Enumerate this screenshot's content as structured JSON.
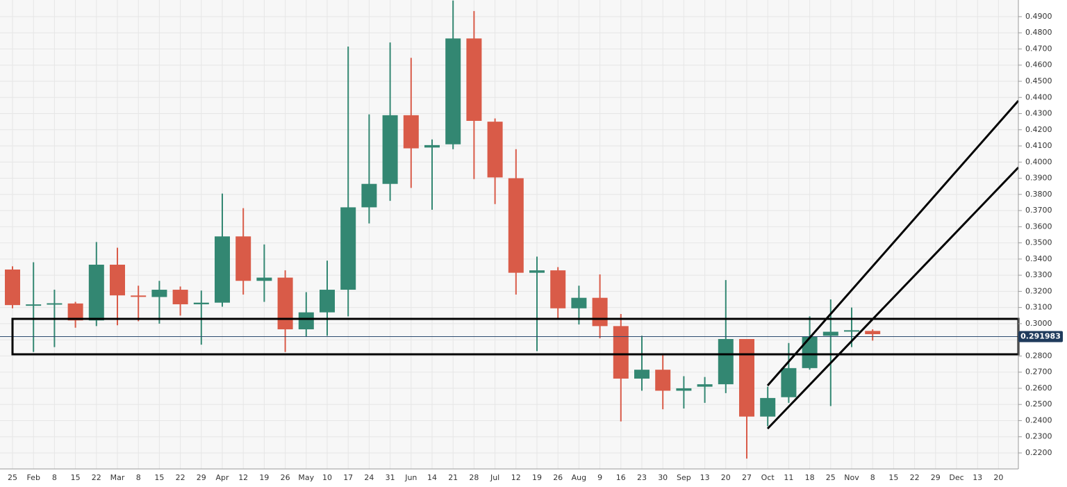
{
  "chart_data": {
    "type": "candlestick",
    "categories": [
      "25",
      "Feb",
      "8",
      "15",
      "22",
      "Mar",
      "8",
      "15",
      "22",
      "29",
      "Apr",
      "12",
      "19",
      "26",
      "May",
      "10",
      "17",
      "24",
      "31",
      "Jun",
      "14",
      "21",
      "28",
      "Jul",
      "12",
      "19",
      "26",
      "Aug",
      "9",
      "16",
      "23",
      "30",
      "Sep",
      "13",
      "20",
      "27",
      "Oct",
      "11",
      "18",
      "25",
      "Nov",
      "8",
      "15",
      "22",
      "29",
      "Dec",
      "13",
      "20"
    ],
    "open": [
      0.3335,
      0.311,
      0.3118,
      0.3125,
      0.302,
      0.3365,
      0.317,
      0.3165,
      0.321,
      0.312,
      0.313,
      0.354,
      0.3265,
      0.3285,
      0.2965,
      0.307,
      0.321,
      0.372,
      0.3865,
      0.429,
      0.409,
      0.411,
      0.4765,
      0.425,
      0.39,
      0.3315,
      0.333,
      0.3095,
      0.316,
      0.2985,
      0.266,
      0.2715,
      0.2585,
      0.261,
      0.2625,
      0.2905,
      0.2425,
      0.2545,
      0.2725,
      0.2925,
      0.295,
      0.2955,
      null,
      null,
      null,
      null,
      null,
      null
    ],
    "high": [
      0.3355,
      0.338,
      0.321,
      0.3135,
      0.3505,
      0.347,
      0.3235,
      0.3265,
      0.323,
      0.3205,
      0.3805,
      0.3715,
      0.349,
      0.333,
      0.3195,
      0.339,
      0.4715,
      0.4295,
      0.474,
      0.4645,
      0.414,
      0.5,
      0.4935,
      0.427,
      0.408,
      0.3415,
      0.335,
      0.3235,
      0.3305,
      0.306,
      0.2925,
      0.2805,
      0.2675,
      0.267,
      0.327,
      0.2905,
      0.261,
      0.288,
      0.3045,
      0.315,
      0.31,
      0.2965,
      null,
      null,
      null,
      null,
      null,
      null
    ],
    "low": [
      0.3095,
      0.2825,
      0.2855,
      0.2975,
      0.2985,
      0.299,
      0.3015,
      0.3,
      0.305,
      0.287,
      0.3105,
      0.318,
      0.3135,
      0.2825,
      0.292,
      0.2925,
      0.3045,
      0.362,
      0.376,
      0.384,
      0.3705,
      0.408,
      0.3895,
      0.374,
      0.318,
      0.283,
      0.3025,
      0.2995,
      0.291,
      0.2395,
      0.2585,
      0.247,
      0.2475,
      0.251,
      0.257,
      0.2165,
      0.2365,
      0.251,
      0.2715,
      0.249,
      0.2855,
      0.2895,
      null,
      null,
      null,
      null,
      null,
      null
    ],
    "close": [
      0.3115,
      0.3115,
      0.3122,
      0.302,
      0.3365,
      0.3175,
      0.3165,
      0.321,
      0.312,
      0.313,
      0.354,
      0.3265,
      0.3285,
      0.2965,
      0.307,
      0.321,
      0.372,
      0.3865,
      0.429,
      0.4085,
      0.4105,
      0.4765,
      0.4255,
      0.3905,
      0.3315,
      0.333,
      0.3095,
      0.316,
      0.2985,
      0.266,
      0.2715,
      0.2585,
      0.26,
      0.2625,
      0.2905,
      0.2425,
      0.254,
      0.2725,
      0.292,
      0.295,
      0.2955,
      0.2935,
      null,
      null,
      null,
      null,
      null,
      null
    ],
    "up_color": "#338772",
    "down_color": "#d95b48",
    "current_price": {
      "value": 0.291983,
      "label": "0.291983"
    },
    "ylim": [
      0.2101,
      0.5003
    ],
    "yticks": [
      {
        "value": 0.49,
        "label": "0.4900"
      },
      {
        "value": 0.48,
        "label": "0.4800"
      },
      {
        "value": 0.47,
        "label": "0.4700"
      },
      {
        "value": 0.46,
        "label": "0.4600"
      },
      {
        "value": 0.45,
        "label": "0.4500"
      },
      {
        "value": 0.44,
        "label": "0.4400"
      },
      {
        "value": 0.43,
        "label": "0.4300"
      },
      {
        "value": 0.42,
        "label": "0.4200"
      },
      {
        "value": 0.41,
        "label": "0.4100"
      },
      {
        "value": 0.4,
        "label": "0.4000"
      },
      {
        "value": 0.39,
        "label": "0.3900"
      },
      {
        "value": 0.38,
        "label": "0.3800"
      },
      {
        "value": 0.37,
        "label": "0.3700"
      },
      {
        "value": 0.36,
        "label": "0.3600"
      },
      {
        "value": 0.35,
        "label": "0.3500"
      },
      {
        "value": 0.34,
        "label": "0.3400"
      },
      {
        "value": 0.33,
        "label": "0.3300"
      },
      {
        "value": 0.32,
        "label": "0.3200"
      },
      {
        "value": 0.31,
        "label": "0.3100"
      },
      {
        "value": 0.3,
        "label": "0.3000"
      },
      {
        "value": 0.29,
        "label": "0.2900"
      },
      {
        "value": 0.28,
        "label": "0.2800"
      },
      {
        "value": 0.27,
        "label": "0.2700"
      },
      {
        "value": 0.26,
        "label": "0.2600"
      },
      {
        "value": 0.25,
        "label": "0.2500"
      },
      {
        "value": 0.24,
        "label": "0.2400"
      },
      {
        "value": 0.23,
        "label": "0.2300"
      },
      {
        "value": 0.22,
        "label": "0.2200"
      }
    ],
    "grid": true
  }
}
